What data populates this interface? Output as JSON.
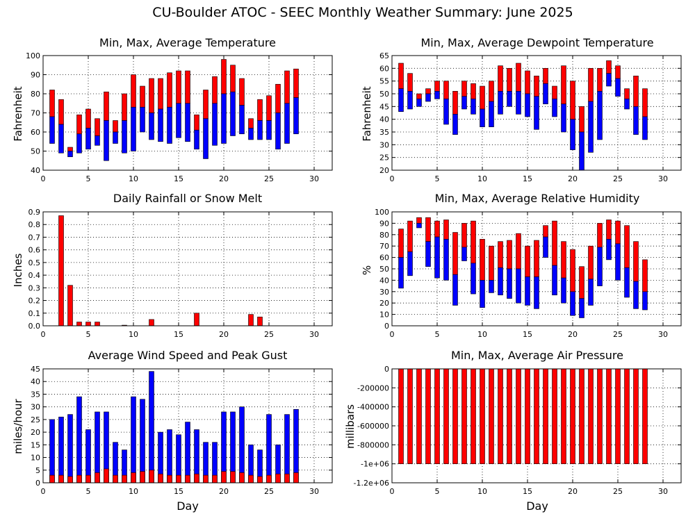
{
  "page": {
    "title": "CU-Boulder ATOC - SEEC Monthly Weather Summary: June 2025"
  },
  "colors": {
    "upper": "#ff0000",
    "lower": "#0000ff",
    "bar_outline": "#000000"
  },
  "chart_data": [
    {
      "id": "temperature",
      "type": "bar",
      "title": "Min, Max, Average Temperature",
      "xlabel": "",
      "ylabel": "Fahrenheit",
      "xlim": [
        0,
        32
      ],
      "xticks": [
        0,
        5,
        10,
        15,
        20,
        25,
        30
      ],
      "ylim": [
        40,
        100
      ],
      "yticks": [
        40,
        50,
        60,
        70,
        80,
        90,
        100
      ],
      "ytick_labels": [
        "40",
        "50",
        "60",
        "70",
        "80",
        "90",
        "100"
      ],
      "x": [
        1,
        2,
        3,
        4,
        5,
        6,
        7,
        8,
        9,
        10,
        11,
        12,
        13,
        14,
        15,
        16,
        17,
        18,
        19,
        20,
        21,
        22,
        23,
        24,
        25,
        26,
        27,
        28
      ],
      "max": [
        82,
        77,
        52,
        69,
        72,
        67,
        81,
        66,
        80,
        90,
        84,
        88,
        88,
        91,
        92,
        92,
        69,
        82,
        89,
        98,
        95,
        88,
        67,
        77,
        79,
        85,
        92,
        93
      ],
      "avg": [
        68,
        64,
        50,
        59,
        62,
        58,
        66,
        60,
        66,
        73,
        73,
        70,
        72,
        73,
        75,
        75,
        61,
        67,
        75,
        80,
        81,
        74,
        62,
        66,
        66,
        70,
        75,
        78
      ],
      "min": [
        54,
        49,
        47,
        49,
        51,
        53,
        45,
        54,
        49,
        50,
        60,
        56,
        55,
        54,
        57,
        55,
        51,
        46,
        53,
        54,
        58,
        59,
        56,
        56,
        56,
        51,
        54,
        59
      ]
    },
    {
      "id": "dewpoint",
      "type": "bar",
      "title": "Min, Max, Average Dewpoint Temperature",
      "xlabel": "",
      "ylabel": "Fahrenheit",
      "xlim": [
        0,
        32
      ],
      "xticks": [
        0,
        5,
        10,
        15,
        20,
        25,
        30
      ],
      "ylim": [
        20,
        65
      ],
      "yticks": [
        20,
        25,
        30,
        35,
        40,
        45,
        50,
        55,
        60,
        65
      ],
      "ytick_labels": [
        "20",
        "25",
        "30",
        "35",
        "40",
        "45",
        "50",
        "55",
        "60",
        "65"
      ],
      "x": [
        1,
        2,
        3,
        4,
        5,
        6,
        7,
        8,
        9,
        10,
        11,
        12,
        13,
        14,
        15,
        16,
        17,
        18,
        19,
        20,
        21,
        22,
        23,
        24,
        25,
        26,
        27,
        28
      ],
      "max": [
        62,
        58,
        50,
        52,
        55,
        55,
        51,
        55,
        54,
        53,
        55,
        61,
        60,
        62,
        59,
        57,
        60,
        53,
        61,
        55,
        45,
        60,
        60,
        63,
        61,
        52,
        57,
        52
      ],
      "avg": [
        52,
        51,
        48,
        50,
        51,
        48,
        42,
        49,
        48,
        44,
        47,
        51,
        51,
        51,
        50,
        49,
        54,
        48,
        46,
        40,
        35,
        47,
        51,
        58,
        56,
        48,
        45,
        41
      ],
      "min": [
        43,
        44,
        45,
        47,
        48,
        38,
        34,
        44,
        42,
        37,
        37,
        42,
        45,
        42,
        41,
        36,
        46,
        41,
        35,
        28,
        20,
        27,
        32,
        53,
        49,
        44,
        34,
        32
      ]
    },
    {
      "id": "rainfall",
      "type": "bar",
      "title": "Daily Rainfall or Snow Melt",
      "xlabel": "",
      "ylabel": "Inches",
      "xlim": [
        0,
        32
      ],
      "xticks": [
        0,
        5,
        10,
        15,
        20,
        25,
        30
      ],
      "ylim": [
        0,
        0.9
      ],
      "yticks": [
        0,
        0.1,
        0.2,
        0.3,
        0.4,
        0.5,
        0.6,
        0.7,
        0.8,
        0.9
      ],
      "ytick_labels": [
        "0.0",
        "0.1",
        "0.2",
        "0.3",
        "0.4",
        "0.5",
        "0.6",
        "0.7",
        "0.8",
        "0.9"
      ],
      "x": [
        1,
        2,
        3,
        4,
        5,
        6,
        7,
        8,
        9,
        10,
        11,
        12,
        13,
        14,
        15,
        16,
        17,
        18,
        19,
        20,
        21,
        22,
        23,
        24,
        25,
        26,
        27,
        28
      ],
      "values": [
        0,
        0.87,
        0.32,
        0.03,
        0.03,
        0.03,
        0,
        0,
        0.005,
        0,
        0,
        0.05,
        0,
        0,
        0,
        0,
        0.1,
        0,
        0,
        0,
        0,
        0,
        0.09,
        0.07,
        0,
        0,
        0,
        0
      ]
    },
    {
      "id": "humidity",
      "type": "bar",
      "title": "Min, Max, Average Relative Humidity",
      "xlabel": "",
      "ylabel": "%",
      "xlim": [
        0,
        32
      ],
      "xticks": [
        0,
        5,
        10,
        15,
        20,
        25,
        30
      ],
      "ylim": [
        0,
        100
      ],
      "yticks": [
        0,
        10,
        20,
        30,
        40,
        50,
        60,
        70,
        80,
        90,
        100
      ],
      "ytick_labels": [
        "0",
        "10",
        "20",
        "30",
        "40",
        "50",
        "60",
        "70",
        "80",
        "90",
        "100"
      ],
      "x": [
        1,
        2,
        3,
        4,
        5,
        6,
        7,
        8,
        9,
        10,
        11,
        12,
        13,
        14,
        15,
        16,
        17,
        18,
        19,
        20,
        21,
        22,
        23,
        24,
        25,
        26,
        27,
        28
      ],
      "max": [
        85,
        92,
        95,
        95,
        92,
        93,
        82,
        90,
        92,
        76,
        70,
        74,
        75,
        81,
        70,
        75,
        88,
        92,
        74,
        67,
        52,
        70,
        90,
        93,
        92,
        88,
        74,
        58
      ],
      "avg": [
        60,
        65,
        90,
        74,
        78,
        76,
        45,
        69,
        55,
        40,
        40,
        51,
        50,
        50,
        43,
        43,
        78,
        53,
        42,
        30,
        24,
        41,
        69,
        76,
        72,
        51,
        39,
        30
      ],
      "min": [
        33,
        44,
        86,
        52,
        42,
        40,
        18,
        57,
        28,
        16,
        29,
        27,
        24,
        20,
        18,
        15,
        60,
        27,
        20,
        9,
        7,
        18,
        35,
        58,
        40,
        25,
        15,
        14
      ]
    },
    {
      "id": "wind",
      "type": "bar",
      "title": "Average Wind Speed and Peak Gust",
      "xlabel": "Day",
      "ylabel": "miles/hour",
      "xlim": [
        0,
        32
      ],
      "xticks": [
        0,
        5,
        10,
        15,
        20,
        25,
        30
      ],
      "ylim": [
        0,
        45
      ],
      "yticks": [
        0,
        5,
        10,
        15,
        20,
        25,
        30,
        35,
        40,
        45
      ],
      "ytick_labels": [
        "0",
        "5",
        "10",
        "15",
        "20",
        "25",
        "30",
        "35",
        "40",
        "45"
      ],
      "x": [
        1,
        2,
        3,
        4,
        5,
        6,
        7,
        8,
        9,
        10,
        11,
        12,
        13,
        14,
        15,
        16,
        17,
        18,
        19,
        20,
        21,
        22,
        23,
        24,
        25,
        26,
        27,
        28
      ],
      "average_speed": [
        3,
        3,
        2.5,
        3,
        3,
        4,
        5.5,
        3,
        3,
        4,
        4.5,
        5,
        3.5,
        3,
        3,
        3,
        3.5,
        3,
        3,
        4.5,
        4.5,
        4,
        3,
        2.5,
        3,
        3.5,
        3.5,
        4
      ],
      "peak_gust": [
        25,
        26,
        27,
        34,
        21,
        28,
        28,
        16,
        13,
        34,
        33,
        44,
        20,
        21,
        19,
        24,
        21,
        16,
        16,
        28,
        28,
        30,
        15,
        13,
        27,
        15,
        27,
        29
      ]
    },
    {
      "id": "pressure",
      "type": "bar",
      "title": "Min, Max, Average Air Pressure",
      "xlabel": "Day",
      "ylabel": "millibars",
      "xlim": [
        0,
        32
      ],
      "xticks": [
        0,
        5,
        10,
        15,
        20,
        25,
        30
      ],
      "ylim": [
        -1200000,
        0
      ],
      "yticks": [
        -1200000,
        -1000000,
        -800000,
        -600000,
        -400000,
        -200000,
        0
      ],
      "ytick_labels": [
        "-1.2e+06",
        "-1e+06",
        "-800000",
        "-600000",
        "-400000",
        "-200000",
        "0"
      ],
      "x": [
        1,
        2,
        3,
        4,
        5,
        6,
        7,
        8,
        9,
        10,
        11,
        12,
        13,
        14,
        15,
        16,
        17,
        18,
        19,
        20,
        21,
        22,
        23,
        24,
        25,
        26,
        27,
        28
      ],
      "max": [
        0,
        0,
        0,
        0,
        0,
        0,
        0,
        0,
        0,
        0,
        0,
        0,
        0,
        0,
        0,
        0,
        0,
        0,
        0,
        0,
        0,
        0,
        0,
        0,
        0,
        0,
        0,
        0
      ],
      "min": [
        -1000000,
        -1000000,
        -1000000,
        -1000000,
        -1000000,
        -1000000,
        -1000000,
        -1000000,
        -1000000,
        -1000000,
        -1000000,
        -1000000,
        -1000000,
        -1000000,
        -1000000,
        -1000000,
        -1000000,
        -1000000,
        -1000000,
        -1000000,
        -1000000,
        -1000000,
        -1000000,
        -1000000,
        -1000000,
        -1000000,
        -1000000,
        -1000000
      ]
    }
  ]
}
